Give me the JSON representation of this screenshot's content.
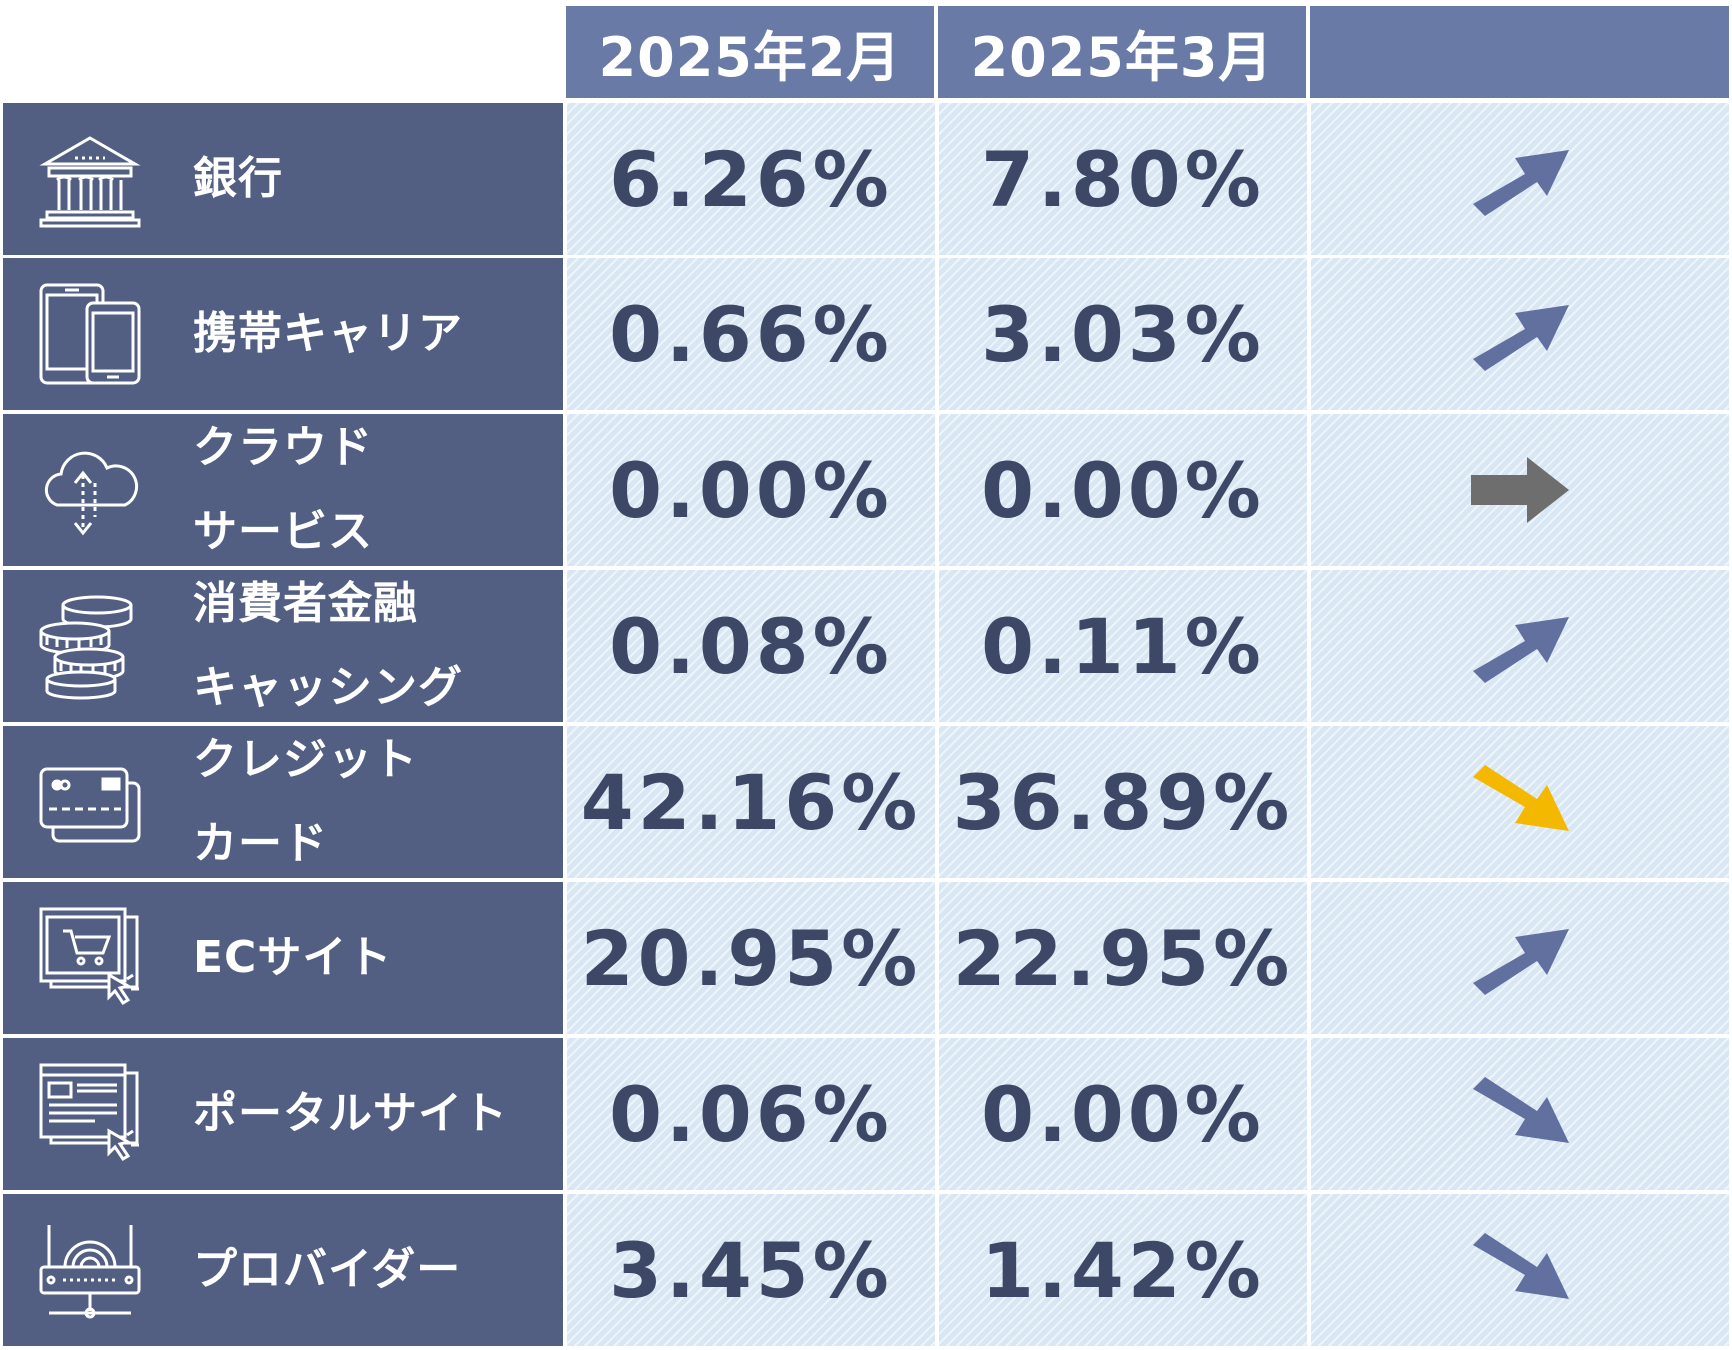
{
  "header": {
    "col1": "2025年2月",
    "col2": "2025年3月",
    "col3": ""
  },
  "colors": {
    "header_bg": "#6a7aa6",
    "category_bg": "#525f82",
    "cell_bg": "#d8e7f3",
    "value_text": "#3d4866",
    "arrow_up": "#62709f",
    "arrow_flat": "#6e6e6e",
    "arrow_down_highlight": "#f5b800",
    "arrow_down": "#62709f"
  },
  "rows": [
    {
      "label": "銀行",
      "icon": "bank-icon",
      "feb": "6.26%",
      "mar": "7.80%",
      "trend": "up"
    },
    {
      "label": "携帯キャリア",
      "icon": "mobile-devices-icon",
      "feb": "0.66%",
      "mar": "3.03%",
      "trend": "up"
    },
    {
      "label": "クラウド\nサービス",
      "icon": "cloud-icon",
      "feb": "0.00%",
      "mar": "0.00%",
      "trend": "flat"
    },
    {
      "label": "消費者金融\nキャッシング",
      "icon": "coins-icon",
      "feb": "0.08%",
      "mar": "0.11%",
      "trend": "up"
    },
    {
      "label": "クレジット\nカード",
      "icon": "credit-card-icon",
      "feb": "42.16%",
      "mar": "36.89%",
      "trend": "down-highlight"
    },
    {
      "label": "ECサイト",
      "icon": "shopping-cart-icon",
      "feb": "20.95%",
      "mar": "22.95%",
      "trend": "up"
    },
    {
      "label": "ポータルサイト",
      "icon": "portal-site-icon",
      "feb": "0.06%",
      "mar": "0.00%",
      "trend": "down"
    },
    {
      "label": "プロバイダー",
      "icon": "router-icon",
      "feb": "3.45%",
      "mar": "1.42%",
      "trend": "down"
    }
  ]
}
